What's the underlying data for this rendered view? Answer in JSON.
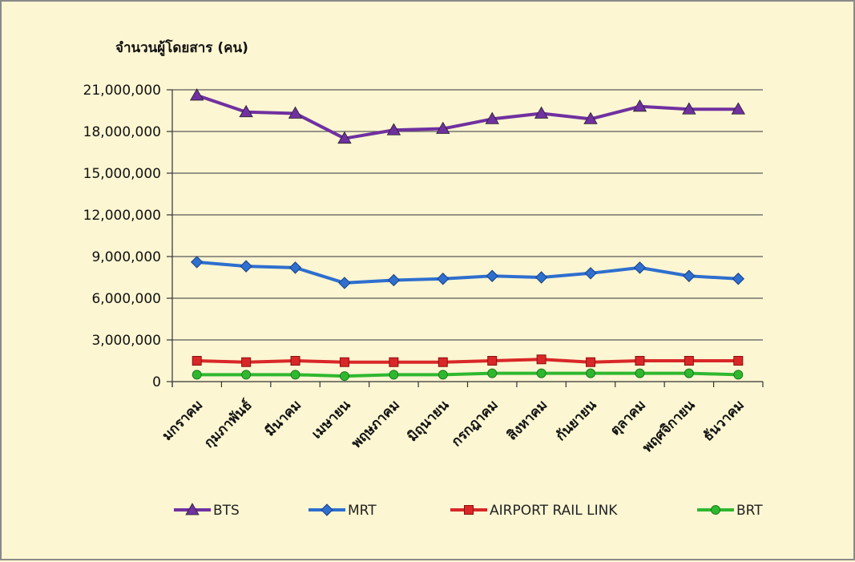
{
  "chart_data": {
    "type": "line",
    "title": "",
    "ylabel": "จำนวนผู้โดยสาร (คน)",
    "xlabel": "",
    "ylim": [
      0,
      21000000
    ],
    "yticks": [
      0,
      3000000,
      6000000,
      9000000,
      12000000,
      15000000,
      18000000,
      21000000
    ],
    "ytick_labels": [
      "0",
      "3,000,000",
      "6,000,000",
      "9,000,000",
      "12,000,000",
      "15,000,000",
      "18,000,000",
      "21,000,000"
    ],
    "grid": true,
    "legend_position": "bottom",
    "categories": [
      "มกราคม",
      "กุมภาพันธ์",
      "มีนาคม",
      "เมษายน",
      "พฤษภาคม",
      "มิถุนายน",
      "กรกฎาคม",
      "สิงหาคม",
      "กันยายน",
      "ตุลาคม",
      "พฤศจิกายน",
      "ธันวาคม"
    ],
    "series": [
      {
        "name": "BTS",
        "color": "#7030a0",
        "marker": "triangle",
        "values": [
          20600000,
          19400000,
          19300000,
          17500000,
          18100000,
          18200000,
          18900000,
          19300000,
          18900000,
          19800000,
          19600000,
          19600000
        ]
      },
      {
        "name": "MRT",
        "color": "#2e6fcf",
        "marker": "diamond",
        "values": [
          8600000,
          8300000,
          8200000,
          7100000,
          7300000,
          7400000,
          7600000,
          7500000,
          7800000,
          8200000,
          7600000,
          7400000
        ]
      },
      {
        "name": "AIRPORT RAIL LINK",
        "color": "#d92727",
        "marker": "square",
        "values": [
          1500000,
          1400000,
          1500000,
          1400000,
          1400000,
          1400000,
          1500000,
          1600000,
          1400000,
          1500000,
          1500000,
          1500000
        ]
      },
      {
        "name": "BRT",
        "color": "#2fb82f",
        "marker": "circle",
        "values": [
          500000,
          500000,
          500000,
          400000,
          500000,
          500000,
          600000,
          600000,
          600000,
          600000,
          600000,
          500000
        ]
      }
    ]
  }
}
